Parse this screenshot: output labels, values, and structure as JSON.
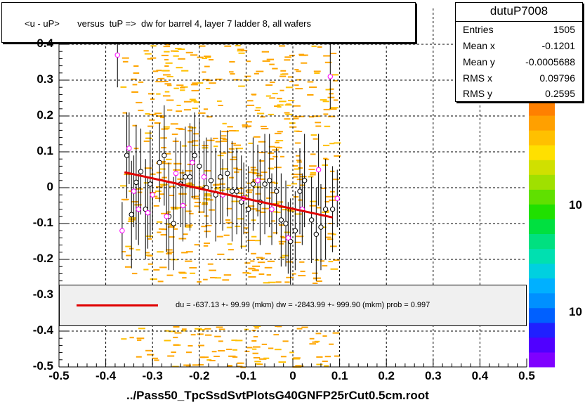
{
  "chart_data": {
    "type": "scatter",
    "title": "<u - uP>       versus  tuP =>  dw for barrel 4, layer 7 ladder 8, all wafers",
    "xlabel": "../Pass50_TpcSsdSvtPlotsG40GNFP25rCut0.5cm.root",
    "ylabel": "",
    "xlim": [
      -0.5,
      0.5
    ],
    "ylim": [
      -0.5,
      0.5
    ],
    "x_ticks": [
      "-0.5",
      "-0.4",
      "-0.3",
      "-0.2",
      "-0.1",
      "0",
      "0.1",
      "0.2",
      "0.3",
      "0.4",
      "0.5"
    ],
    "y_ticks": [
      "-0.5",
      "-0.4",
      "-0.3",
      "-0.2",
      "-0.1",
      "0",
      "0.1",
      "0.2",
      "0.3",
      "0.4"
    ],
    "grid": true,
    "stats": {
      "name": "dutuP7008",
      "rows": [
        {
          "label": "Entries",
          "value": "1505"
        },
        {
          "label": "Mean x",
          "value": "-0.1201"
        },
        {
          "label": "Mean y",
          "value": "-0.0005688"
        },
        {
          "label": "RMS x",
          "value": "0.09796"
        },
        {
          "label": "RMS y",
          "value": "0.2595"
        }
      ]
    },
    "fit": {
      "text": "du = -637.13 +- 99.99 (mkm) dw = -2843.99 +- 999.90 (mkm) prob = 0.997",
      "line": {
        "x": [
          -0.36,
          0.085
        ],
        "y": [
          0.043,
          -0.083
        ]
      },
      "color": "#e00000"
    },
    "palette_labels": [
      "10",
      "10"
    ],
    "profile_black": [
      {
        "x": -0.355,
        "y": 0.09,
        "e": 0.12
      },
      {
        "x": -0.345,
        "y": -0.075,
        "e": 0.15
      },
      {
        "x": -0.335,
        "y": 0.015,
        "e": 0.16
      },
      {
        "x": -0.325,
        "y": 0.045,
        "e": 0.12
      },
      {
        "x": -0.315,
        "y": -0.06,
        "e": 0.14
      },
      {
        "x": -0.305,
        "y": 0.01,
        "e": 0.15
      },
      {
        "x": -0.285,
        "y": 0.07,
        "e": 0.11
      },
      {
        "x": -0.275,
        "y": 0.09,
        "e": 0.14
      },
      {
        "x": -0.265,
        "y": -0.08,
        "e": 0.15
      },
      {
        "x": -0.255,
        "y": -0.1,
        "e": 0.13
      },
      {
        "x": -0.24,
        "y": 0.01,
        "e": 0.12
      },
      {
        "x": -0.23,
        "y": 0.03,
        "e": 0.14
      },
      {
        "x": -0.22,
        "y": 0.03,
        "e": 0.15
      },
      {
        "x": -0.21,
        "y": 0.09,
        "e": 0.12
      },
      {
        "x": -0.2,
        "y": 0.06,
        "e": 0.13
      },
      {
        "x": -0.185,
        "y": 0.0,
        "e": 0.14
      },
      {
        "x": -0.175,
        "y": 0.02,
        "e": 0.12
      },
      {
        "x": -0.165,
        "y": -0.02,
        "e": 0.13
      },
      {
        "x": -0.155,
        "y": 0.03,
        "e": 0.13
      },
      {
        "x": -0.14,
        "y": 0.04,
        "e": 0.12
      },
      {
        "x": -0.13,
        "y": -0.01,
        "e": 0.14
      },
      {
        "x": -0.12,
        "y": -0.01,
        "e": 0.12
      },
      {
        "x": -0.11,
        "y": -0.04,
        "e": 0.13
      },
      {
        "x": -0.095,
        "y": -0.06,
        "e": 0.12
      },
      {
        "x": -0.085,
        "y": 0.01,
        "e": 0.13
      },
      {
        "x": -0.07,
        "y": -0.04,
        "e": 0.12
      },
      {
        "x": -0.06,
        "y": 0.01,
        "e": 0.14
      },
      {
        "x": -0.05,
        "y": 0.02,
        "e": 0.13
      },
      {
        "x": -0.035,
        "y": -0.01,
        "e": 0.12
      },
      {
        "x": -0.025,
        "y": -0.09,
        "e": 0.13
      },
      {
        "x": -0.015,
        "y": -0.1,
        "e": 0.12
      },
      {
        "x": -0.005,
        "y": -0.15,
        "e": 0.12
      },
      {
        "x": 0.005,
        "y": -0.12,
        "e": 0.11
      },
      {
        "x": 0.015,
        "y": -0.01,
        "e": 0.12
      },
      {
        "x": 0.025,
        "y": 0.02,
        "e": 0.13
      },
      {
        "x": 0.04,
        "y": -0.09,
        "e": 0.12
      },
      {
        "x": 0.05,
        "y": -0.13,
        "e": 0.13
      },
      {
        "x": 0.06,
        "y": -0.11,
        "e": 0.12
      },
      {
        "x": 0.07,
        "y": -0.06,
        "e": 0.14
      },
      {
        "x": 0.085,
        "y": -0.06,
        "e": 0.12
      }
    ],
    "profile_magenta": [
      {
        "x": -0.375,
        "y": 0.37,
        "e": 0.09
      },
      {
        "x": -0.365,
        "y": -0.12,
        "e": 0.08
      },
      {
        "x": -0.35,
        "y": 0.11,
        "e": 0.1
      },
      {
        "x": -0.34,
        "y": -0.01,
        "e": 0.1
      },
      {
        "x": -0.33,
        "y": -0.06,
        "e": 0.1
      },
      {
        "x": -0.31,
        "y": -0.07,
        "e": 0.1
      },
      {
        "x": -0.3,
        "y": -0.02,
        "e": 0.1
      },
      {
        "x": -0.27,
        "y": -0.08,
        "e": 0.1
      },
      {
        "x": -0.25,
        "y": 0.04,
        "e": 0.1
      },
      {
        "x": -0.235,
        "y": -0.05,
        "e": 0.1
      },
      {
        "x": -0.215,
        "y": 0.07,
        "e": 0.1
      },
      {
        "x": -0.19,
        "y": 0.03,
        "e": 0.1
      },
      {
        "x": -0.15,
        "y": -0.02,
        "e": 0.1
      },
      {
        "x": -0.105,
        "y": -0.03,
        "e": 0.1
      },
      {
        "x": -0.075,
        "y": 0.02,
        "e": 0.1
      },
      {
        "x": -0.045,
        "y": -0.06,
        "e": 0.1
      },
      {
        "x": -0.01,
        "y": -0.14,
        "e": 0.1
      },
      {
        "x": 0.02,
        "y": -0.06,
        "e": 0.1
      },
      {
        "x": 0.055,
        "y": 0.05,
        "e": 0.1
      },
      {
        "x": 0.08,
        "y": 0.31,
        "e": 0.09
      },
      {
        "x": 0.095,
        "y": -0.03,
        "e": 0.08
      }
    ],
    "colors": {
      "scatter": "#ffa500",
      "profile_black": "#000000",
      "profile_magenta": "#ff00ff",
      "fit": "#e00000",
      "palette": [
        "#7f00ff",
        "#5000ff",
        "#2020ff",
        "#0060ff",
        "#0090ff",
        "#00b0ff",
        "#00d0e0",
        "#00e0b0",
        "#00e080",
        "#00e040",
        "#20e000",
        "#60e000",
        "#a0e000",
        "#d0e000",
        "#ffe000",
        "#ffc000",
        "#ffa000",
        "#ff8000"
      ]
    }
  }
}
